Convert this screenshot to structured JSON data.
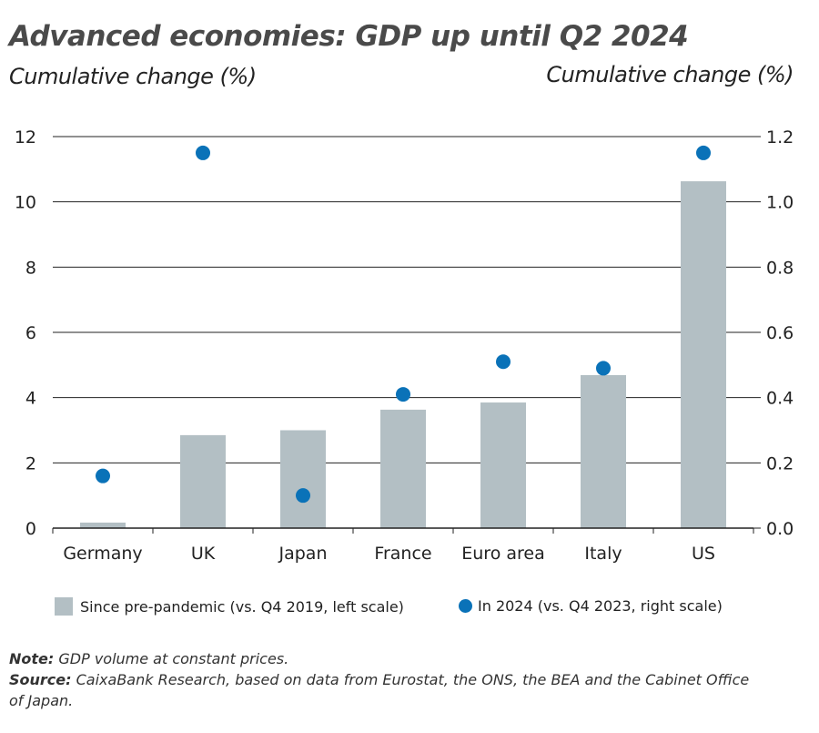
{
  "chart_data": {
    "type": "bar",
    "title": "Advanced economies: GDP up until Q2 2024",
    "ylabel_left": "Cumulative change (%)",
    "ylabel_right": "Cumulative change (%)",
    "categories": [
      "Germany",
      "UK",
      "Japan",
      "France",
      "Euro area",
      "Italy",
      "US"
    ],
    "ylim_left": [
      0,
      12
    ],
    "yticks_left": [
      "0",
      "2",
      "4",
      "6",
      "8",
      "10",
      "12"
    ],
    "ylim_right": [
      0,
      1.2
    ],
    "yticks_right": [
      "0.0",
      "0.2",
      "0.4",
      "0.6",
      "0.8",
      "1.0",
      "1.2"
    ],
    "grid": true,
    "legend_position": "bottom",
    "series": [
      {
        "name": "Since pre-pandemic (vs. Q4 2019, left scale)",
        "type": "bar",
        "axis": "left",
        "color": "#b3bfc4",
        "values": [
          0.17,
          2.85,
          3.0,
          3.63,
          3.85,
          4.69,
          10.63
        ]
      },
      {
        "name": "In 2024 (vs. Q4 2023, right scale)",
        "type": "scatter",
        "axis": "right",
        "color": "#0a72b8",
        "values": [
          0.16,
          1.15,
          0.1,
          0.41,
          0.51,
          0.49,
          1.15
        ]
      }
    ]
  },
  "notes": {
    "note_label": "Note:",
    "note_text": " GDP volume at constant prices.",
    "source_label": "Source:",
    "source_text": " CaixaBank Research, based on data from Eurostat, the ONS, the BEA and the Cabinet Office of Japan."
  }
}
